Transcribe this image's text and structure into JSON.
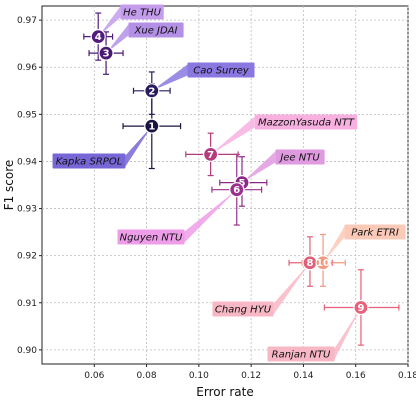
{
  "chart_data": {
    "type": "scatter",
    "xlabel": "Error rate",
    "ylabel": "F1 score",
    "xlim": [
      0.04,
      0.18
    ],
    "ylim": [
      0.897,
      0.973
    ],
    "x_ticks": [
      "0.06",
      "0.08",
      "0.10",
      "0.12",
      "0.14",
      "0.16",
      "0.18"
    ],
    "y_ticks": [
      "0.90",
      "0.91",
      "0.92",
      "0.93",
      "0.94",
      "0.95",
      "0.96",
      "0.97"
    ],
    "grid": true,
    "points": [
      {
        "rank": "1",
        "label": "Kapka SRPOL",
        "x": 0.082,
        "y": 0.9475,
        "x_err": [
          0.071,
          0.093
        ],
        "y_err": [
          0.9385,
          0.9565
        ],
        "color": "#1b1440",
        "label_bg": "#7766d6"
      },
      {
        "rank": "2",
        "label": "Cao Surrey",
        "x": 0.082,
        "y": 0.955,
        "x_err": [
          0.075,
          0.089
        ],
        "y_err": [
          0.95,
          0.959
        ],
        "color": "#2a1a5e",
        "label_bg": "#8a78e0"
      },
      {
        "rank": "3",
        "label": "Xue JDAI",
        "x": 0.0645,
        "y": 0.963,
        "x_err": [
          0.058,
          0.071
        ],
        "y_err": [
          0.9585,
          0.9675
        ],
        "color": "#4a1a73",
        "label_bg": "#b48fe6"
      },
      {
        "rank": "4",
        "label": "He THU",
        "x": 0.0615,
        "y": 0.9665,
        "x_err": [
          0.056,
          0.067
        ],
        "y_err": [
          0.9615,
          0.9715
        ],
        "color": "#531c7c",
        "label_bg": "#c49cec"
      },
      {
        "rank": "5",
        "label": "Jee NTU",
        "x": 0.1165,
        "y": 0.9355,
        "x_err": [
          0.108,
          0.126
        ],
        "y_err": [
          0.9305,
          0.941
        ],
        "color": "#8a2a86",
        "label_bg": "#e09be0"
      },
      {
        "rank": "6",
        "label": "Nguyen NTU",
        "x": 0.1145,
        "y": 0.934,
        "x_err": [
          0.105,
          0.124
        ],
        "y_err": [
          0.9265,
          0.9415
        ],
        "color": "#9a3090",
        "label_bg": "#ee9ee8"
      },
      {
        "rank": "7",
        "label": "MazzonYasuda NTT",
        "x": 0.1045,
        "y": 0.9415,
        "x_err": [
          0.095,
          0.115
        ],
        "y_err": [
          0.937,
          0.946
        ],
        "color": "#b23c7e",
        "label_bg": "#f7b0e0"
      },
      {
        "rank": "8",
        "label": "Chang HYU",
        "x": 0.1425,
        "y": 0.9185,
        "x_err": [
          0.1345,
          0.151
        ],
        "y_err": [
          0.9135,
          0.924
        ],
        "color": "#e0607a",
        "label_bg": "#f8b7c4"
      },
      {
        "rank": "9",
        "label": "Ranjan NTU",
        "x": 0.162,
        "y": 0.909,
        "x_err": [
          0.148,
          0.1765
        ],
        "y_err": [
          0.901,
          0.917
        ],
        "color": "#e8607a",
        "label_bg": "#f8b7c4"
      },
      {
        "rank": "10",
        "label": "Park ETRI",
        "x": 0.1475,
        "y": 0.9185,
        "x_err": [
          0.1395,
          0.156
        ],
        "y_err": [
          0.9135,
          0.9245
        ],
        "color": "#f09a7e",
        "label_bg": "#fbc9b8"
      }
    ]
  }
}
